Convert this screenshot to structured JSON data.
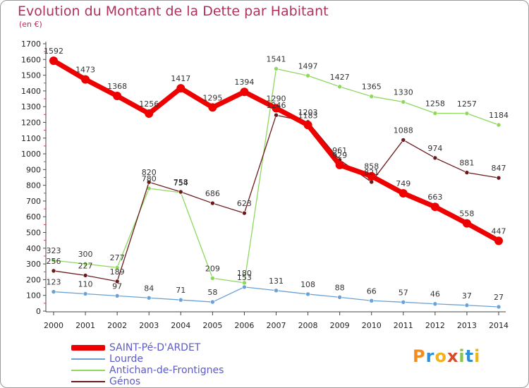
{
  "header": {
    "title": "Evolution du Montant de la Dette par Habitant",
    "subtitle": "(en €)"
  },
  "logo": {
    "letters": [
      "P",
      "r",
      "o",
      "x",
      "i",
      "t",
      "i"
    ],
    "colors": [
      "#f28c1e",
      "#2d8fd6",
      "#f2b21e",
      "#d94a2a",
      "#8bc34a",
      "#2d8fd6",
      "#f2b21e"
    ]
  },
  "chart_data": {
    "type": "line",
    "x": [
      "2000",
      "2001",
      "2002",
      "2003",
      "2004",
      "2005",
      "2006",
      "2007",
      "2008",
      "2009",
      "2010",
      "2011",
      "2012",
      "2013",
      "2014"
    ],
    "ylim": [
      0,
      1700
    ],
    "yticks": [
      0,
      100,
      200,
      300,
      400,
      500,
      600,
      700,
      800,
      900,
      1000,
      1100,
      1200,
      1300,
      1400,
      1500,
      1600,
      1700
    ],
    "grid": false,
    "legend_position": "bottom-left",
    "series": [
      {
        "name": "SAINT-Pé-D'ARDET",
        "color": "#ee0000",
        "width": 7,
        "point": 6,
        "values": [
          1592,
          1473,
          1368,
          1256,
          1417,
          1295,
          1394,
          1290,
          1183,
          929,
          858,
          749,
          663,
          558,
          447
        ]
      },
      {
        "name": "Lourde",
        "color": "#6aa2d6",
        "width": 1.3,
        "point": 3,
        "values": [
          123,
          110,
          97,
          84,
          71,
          58,
          153,
          131,
          108,
          88,
          66,
          57,
          46,
          37,
          27
        ]
      },
      {
        "name": "Antichan-de-Frontignes",
        "color": "#8ed85e",
        "width": 1.3,
        "point": 3,
        "values": [
          323,
          300,
          277,
          780,
          754,
          209,
          180,
          1541,
          1497,
          1427,
          1365,
          1330,
          1258,
          1257,
          1184
        ]
      },
      {
        "name": "Génos",
        "color": "#6b1a1a",
        "width": 1.3,
        "point": 3,
        "values": [
          256,
          227,
          189,
          820,
          758,
          686,
          623,
          1246,
          1203,
          961,
          821,
          1088,
          974,
          881,
          847
        ]
      }
    ]
  }
}
